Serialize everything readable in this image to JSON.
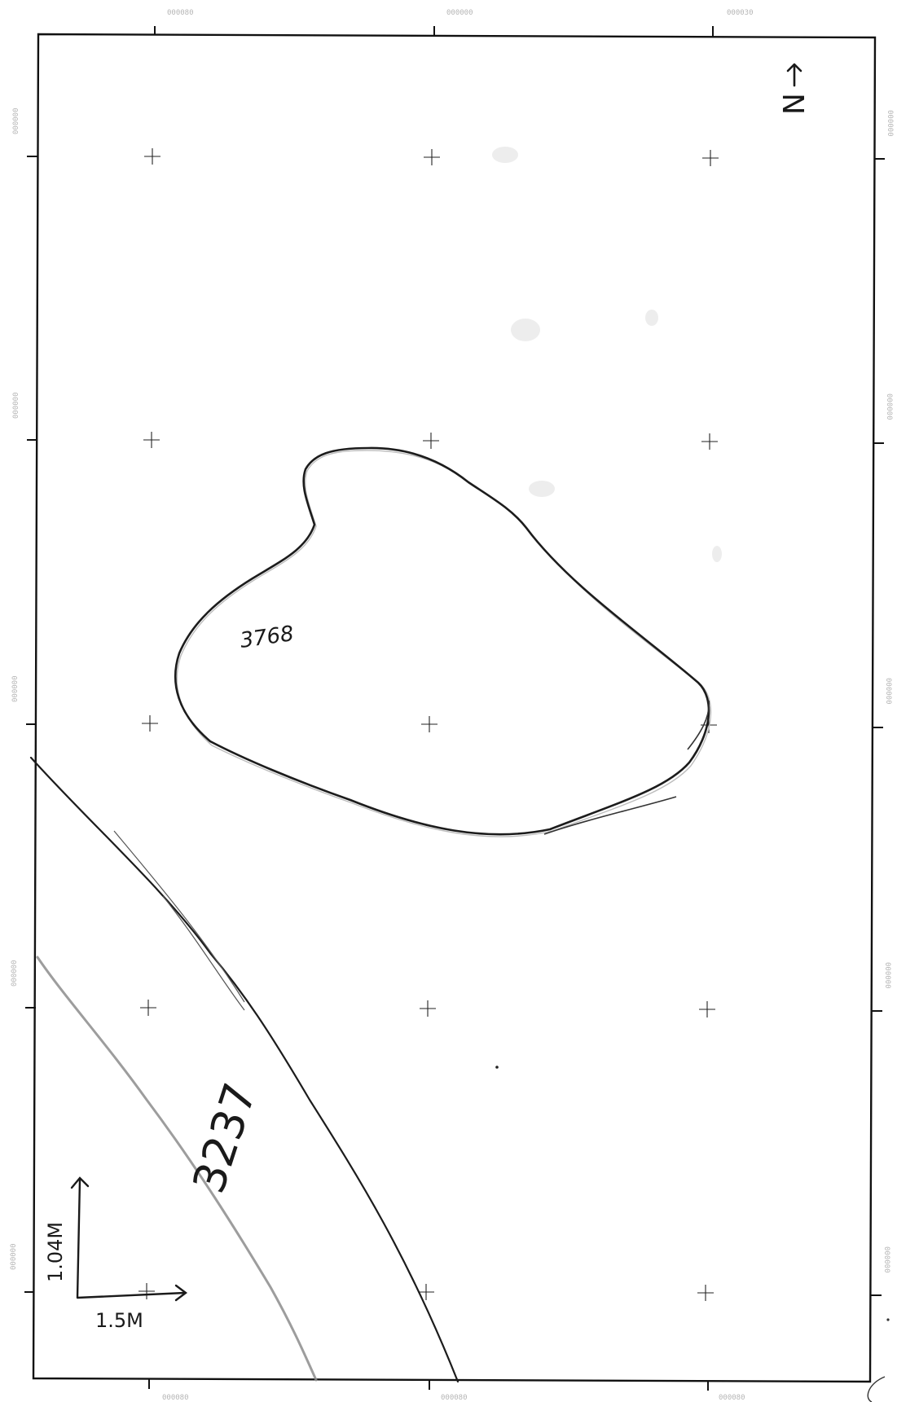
{
  "grid_labels": {
    "top": [
      "000080",
      "000000",
      "000030"
    ],
    "bottom": [
      "000080",
      "000080",
      "000080"
    ],
    "left": [
      "000000",
      "000000",
      "000000",
      "000000",
      "000000"
    ],
    "right": [
      "000000",
      "000000",
      "000000",
      "000000",
      "000000"
    ]
  },
  "features": {
    "pit_label": "3768",
    "ditch_label": "3237"
  },
  "north_arrow": {
    "label": "N"
  },
  "scale_bar": {
    "vertical_label": "1.04M",
    "horizontal_label": "1.5M"
  }
}
